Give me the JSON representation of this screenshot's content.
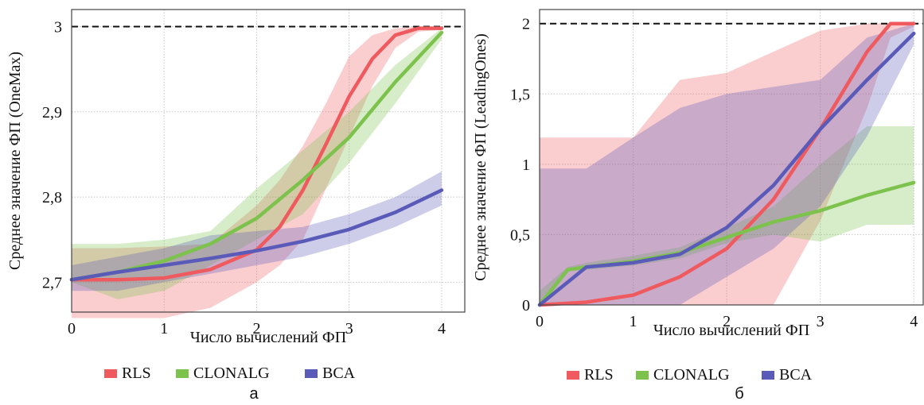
{
  "colors": {
    "RLS": "#ef5a5f",
    "CLONALG": "#7cc24c",
    "BCA": "#5a5ab8"
  },
  "legend": {
    "items": [
      "RLS",
      "CLONALG",
      "BCA"
    ]
  },
  "chart_data": [
    {
      "type": "line",
      "panel_label": "а",
      "xlabel": "Число вычислений ФП",
      "ylabel": "Среднее значение ФП (OneMax)",
      "xlim": [
        0,
        4.25
      ],
      "ylim": [
        2.665,
        3.02
      ],
      "xticks": [
        0,
        1,
        2,
        3,
        4
      ],
      "xtick_labels": [
        "0",
        "1",
        "2",
        "3",
        "4"
      ],
      "yticks": [
        2.7,
        2.8,
        2.9,
        3.0
      ],
      "ytick_labels": [
        "2,7",
        "2,8",
        "2,9",
        "3"
      ],
      "grid": true,
      "legend_position": "bottom",
      "reference_line": 3.0,
      "series": [
        {
          "name": "RLS",
          "x": [
            0,
            0.5,
            1,
            1.5,
            2,
            2.25,
            2.5,
            2.75,
            3,
            3.25,
            3.5,
            3.75,
            4
          ],
          "y": [
            2.703,
            2.703,
            2.705,
            2.715,
            2.738,
            2.765,
            2.808,
            2.862,
            2.918,
            2.962,
            2.99,
            2.998,
            2.998
          ],
          "band_low": [
            2.658,
            2.658,
            2.658,
            2.67,
            2.7,
            2.72,
            2.75,
            2.81,
            2.87,
            2.93,
            2.975,
            2.994,
            2.996
          ],
          "band_high": [
            2.74,
            2.74,
            2.742,
            2.745,
            2.79,
            2.82,
            2.86,
            2.91,
            2.965,
            2.99,
            2.998,
            3.0,
            3.0
          ]
        },
        {
          "name": "CLONALG",
          "x": [
            0,
            0.5,
            1,
            1.5,
            2,
            2.5,
            3,
            3.5,
            4
          ],
          "y": [
            2.703,
            2.712,
            2.725,
            2.745,
            2.775,
            2.82,
            2.87,
            2.935,
            2.993
          ],
          "band_low": [
            2.7,
            2.68,
            2.69,
            2.72,
            2.75,
            2.78,
            2.84,
            2.91,
            2.985
          ],
          "band_high": [
            2.745,
            2.745,
            2.75,
            2.76,
            2.81,
            2.855,
            2.9,
            2.955,
            2.998
          ]
        },
        {
          "name": "BCA",
          "x": [
            0,
            0.5,
            1,
            1.5,
            2,
            2.5,
            3,
            3.5,
            4
          ],
          "y": [
            2.703,
            2.712,
            2.72,
            2.728,
            2.737,
            2.748,
            2.762,
            2.782,
            2.808
          ],
          "band_low": [
            2.69,
            2.69,
            2.7,
            2.71,
            2.72,
            2.73,
            2.745,
            2.765,
            2.79
          ],
          "band_high": [
            2.72,
            2.73,
            2.74,
            2.755,
            2.76,
            2.765,
            2.78,
            2.8,
            2.83
          ]
        }
      ]
    },
    {
      "type": "line",
      "panel_label": "б",
      "xlabel": "Число вычислений ФП",
      "ylabel": "Среднее значение ФП (LeadingOnes)",
      "xlim": [
        0,
        4.1
      ],
      "ylim": [
        0,
        2.1
      ],
      "xticks": [
        0,
        1,
        2,
        3,
        4
      ],
      "xtick_labels": [
        "0",
        "1",
        "2",
        "3",
        "4"
      ],
      "yticks": [
        0,
        0.5,
        1,
        1.5,
        2
      ],
      "ytick_labels": [
        "0",
        "0,5",
        "1",
        "1,5",
        "2"
      ],
      "grid": true,
      "legend_position": "bottom",
      "reference_line": 2.0,
      "series": [
        {
          "name": "RLS",
          "x": [
            0,
            0.5,
            1,
            1.5,
            2,
            2.5,
            3,
            3.5,
            3.75,
            4
          ],
          "y": [
            0,
            0.02,
            0.07,
            0.2,
            0.4,
            0.75,
            1.25,
            1.8,
            2.0,
            2.0
          ],
          "band_low": [
            0,
            0,
            0,
            0,
            0,
            0,
            0.6,
            1.4,
            1.9,
            1.98
          ],
          "band_high": [
            1.19,
            1.19,
            1.19,
            1.6,
            1.65,
            1.8,
            1.95,
            2.0,
            2.0,
            2.0
          ]
        },
        {
          "name": "CLONALG",
          "x": [
            0,
            0.3,
            0.5,
            1,
            1.5,
            2,
            2.5,
            3,
            3.5,
            4
          ],
          "y": [
            0,
            0.25,
            0.27,
            0.31,
            0.37,
            0.48,
            0.59,
            0.67,
            0.78,
            0.87
          ],
          "band_low": [
            0,
            0.24,
            0.25,
            0.28,
            0.33,
            0.44,
            0.5,
            0.45,
            0.57,
            0.57
          ],
          "band_high": [
            0.1,
            0.27,
            0.3,
            0.35,
            0.41,
            0.55,
            0.7,
            1.0,
            1.27,
            1.27
          ]
        },
        {
          "name": "BCA",
          "x": [
            0,
            0.5,
            1,
            1.5,
            2,
            2.5,
            3,
            3.5,
            4
          ],
          "y": [
            0,
            0.27,
            0.3,
            0.36,
            0.55,
            0.85,
            1.25,
            1.6,
            1.93
          ],
          "band_low": [
            0,
            0,
            0,
            0,
            0.2,
            0.4,
            0.7,
            1.2,
            1.85
          ],
          "band_high": [
            0.97,
            0.97,
            1.19,
            1.4,
            1.5,
            1.55,
            1.6,
            1.9,
            2.0
          ]
        }
      ]
    }
  ]
}
